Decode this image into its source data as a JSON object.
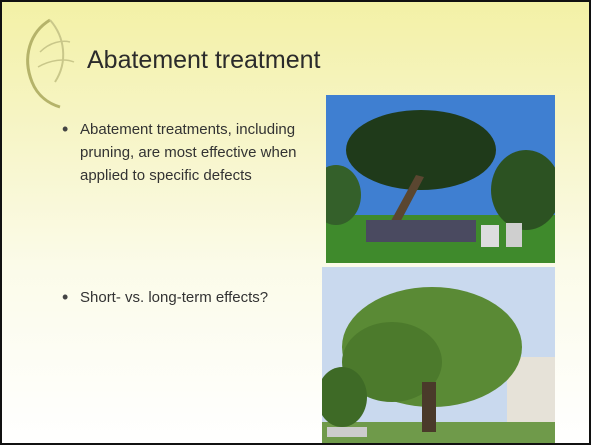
{
  "slide": {
    "title": "Abatement treatment",
    "bullets": [
      "Abatement treatments, including pruning, are most effective when applied to specific defects",
      "Short- vs. long-term effects?"
    ]
  }
}
